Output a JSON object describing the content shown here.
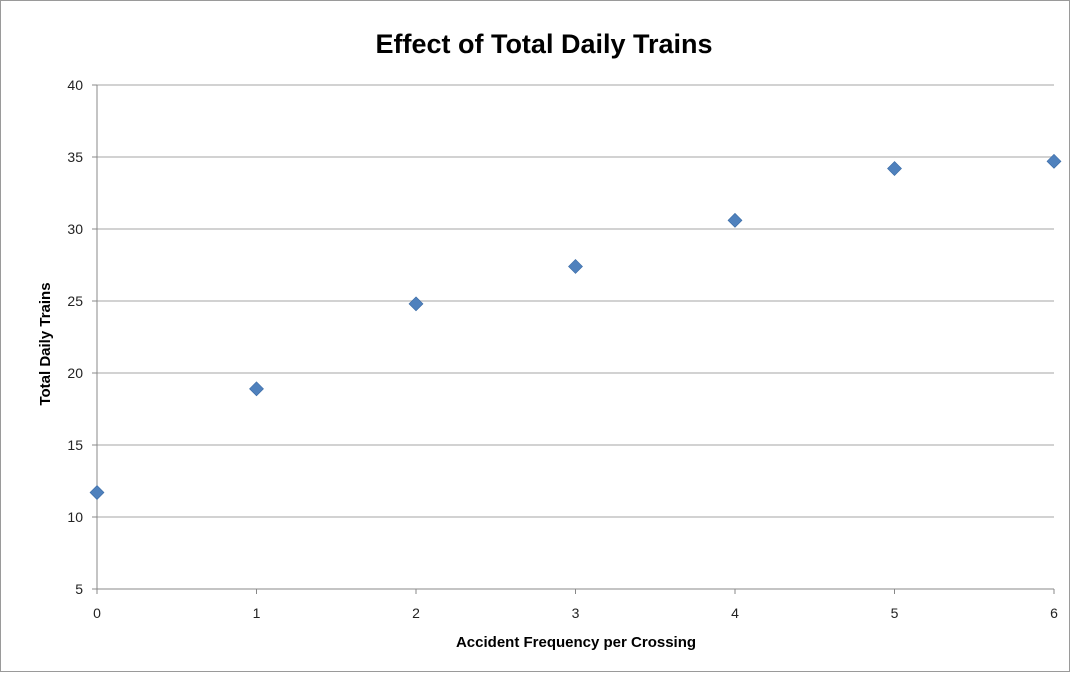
{
  "chart_data": {
    "type": "scatter",
    "title": "Effect of Total Daily Trains",
    "xlabel": "Accident Frequency per Crossing",
    "ylabel": "Total Daily Trains",
    "xlim": [
      0,
      6
    ],
    "ylim": [
      5,
      40
    ],
    "x_ticks": [
      "0",
      "1",
      "2",
      "3",
      "4",
      "5",
      "6"
    ],
    "y_ticks": [
      "5",
      "10",
      "15",
      "20",
      "25",
      "30",
      "35",
      "40"
    ],
    "grid": "horizontal",
    "series": [
      {
        "x": [
          0,
          1,
          2,
          3,
          4,
          5,
          6
        ],
        "y": [
          11.7,
          18.9,
          24.8,
          27.4,
          30.6,
          34.2,
          34.7
        ],
        "marker": "diamond",
        "color": "#4f81bd"
      }
    ]
  }
}
